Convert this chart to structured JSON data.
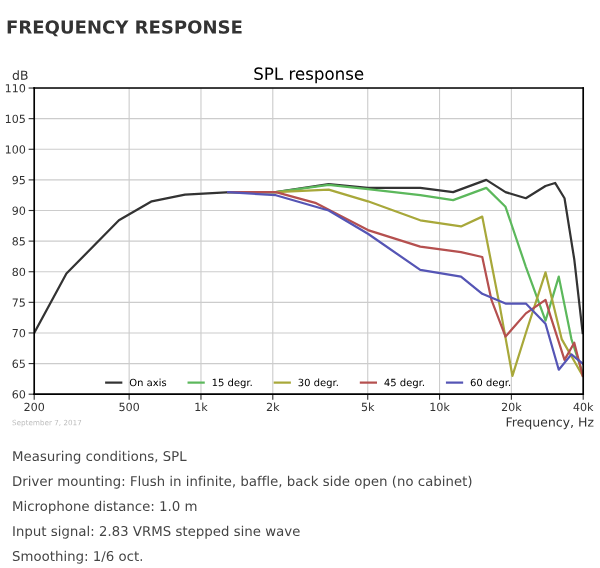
{
  "chart_data": {
    "type": "line",
    "title": "SPL response",
    "subtitle": "FREQUENCY RESPONSE",
    "ylabel": "dB",
    "xlabel": "Frequency, Hz",
    "log": "x",
    "grid": true,
    "legend": "bottom",
    "xlim": [
      200,
      40000
    ],
    "xticks": [
      {
        "value": 200,
        "label": "200"
      },
      {
        "value": 500,
        "label": "500"
      },
      {
        "value": 1000,
        "label": "1k"
      },
      {
        "value": 2000,
        "label": "2k"
      },
      {
        "value": 5000,
        "label": "5k"
      },
      {
        "value": 10000,
        "label": "10k"
      },
      {
        "value": 20000,
        "label": "20k"
      },
      {
        "value": 40000,
        "label": "40k"
      }
    ],
    "ylim": [
      60,
      110
    ],
    "yticks": [
      60,
      65,
      70,
      75,
      80,
      85,
      90,
      95,
      100,
      105,
      110
    ],
    "series": [
      {
        "name": "On axis",
        "color": "#333333",
        "x": [
          200,
          273,
          453,
          622,
          857,
          1331,
          2060,
          3430,
          5010,
          8300,
          11400,
          15700,
          18900,
          23000,
          27800,
          30500,
          33400,
          36700,
          39800
        ],
        "values": [
          70,
          79.7,
          88.4,
          91.5,
          92.6,
          93,
          93,
          94.3,
          93.7,
          93.7,
          93,
          95,
          93,
          92,
          94,
          94.5,
          92,
          82,
          70
        ]
      },
      {
        "name": "15 degr.",
        "color": "#5cb85c",
        "x": [
          1300,
          2060,
          3430,
          5010,
          8300,
          11400,
          15700,
          18900,
          23000,
          27800,
          31600,
          35700,
          39800
        ],
        "values": [
          93,
          93,
          94.2,
          93.5,
          92.5,
          91.7,
          93.7,
          90.6,
          80.8,
          72,
          79.2,
          69,
          63.4
        ]
      },
      {
        "name": "30 degr.",
        "color": "#a8a83a",
        "x": [
          1300,
          2060,
          3430,
          5010,
          8300,
          12300,
          15100,
          17900,
          20200,
          23000,
          27800,
          32500,
          39800
        ],
        "values": [
          93,
          93,
          93.4,
          91.5,
          88.4,
          87.4,
          89,
          74.3,
          63,
          70,
          79.9,
          69,
          63
        ]
      },
      {
        "name": "45 degr.",
        "color": "#b5504f",
        "x": [
          1300,
          2060,
          3040,
          5010,
          8300,
          12300,
          15100,
          16500,
          18900,
          23000,
          27800,
          29200,
          33400,
          36700,
          39800
        ],
        "values": [
          93,
          93,
          91.2,
          86.8,
          84.1,
          83.2,
          82.4,
          75.4,
          69.4,
          73.2,
          75.4,
          72.7,
          65.6,
          68.4,
          63
        ]
      },
      {
        "name": "60 degr.",
        "color": "#5555b5",
        "x": [
          1300,
          2060,
          3430,
          5010,
          8300,
          12300,
          15100,
          18900,
          23000,
          27800,
          31600,
          35700,
          39800
        ],
        "values": [
          93,
          92.5,
          90,
          86.2,
          80.3,
          79.2,
          76.4,
          74.8,
          74.8,
          71.5,
          64,
          66.5,
          65
        ]
      }
    ],
    "annotations": [
      "September 7, 2017",
      "Measuring conditions, SPL",
      "Driver mounting: Flush in infinite, baffle, back side open (no cabinet)",
      "Microphone distance: 1.0 m",
      "Input signal: 2.83 VRMS stepped sine wave",
      "Smoothing: 1/6 oct."
    ]
  }
}
